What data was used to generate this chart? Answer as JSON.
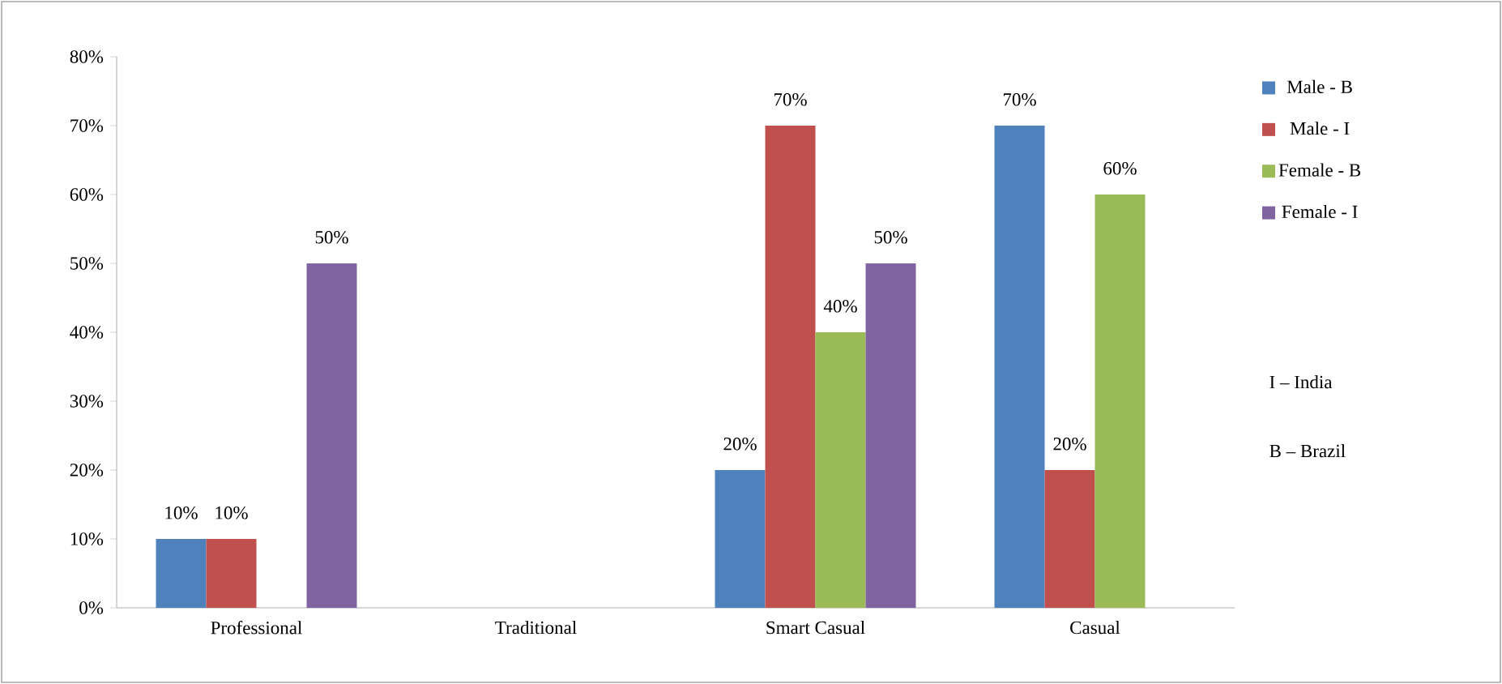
{
  "chart_data": {
    "type": "bar",
    "categories": [
      "Professional",
      "Traditional",
      "Smart Casual",
      "Casual"
    ],
    "series": [
      {
        "name": "Male - B",
        "color": "#4f81bd",
        "values": [
          10,
          null,
          20,
          70
        ],
        "value_labels": [
          "10%",
          null,
          "20%",
          "70%"
        ]
      },
      {
        "name": "Male - I",
        "color": "#c0504d",
        "values": [
          10,
          null,
          70,
          20
        ],
        "value_labels": [
          "10%",
          null,
          "70%",
          "20%"
        ]
      },
      {
        "name": "Female - B",
        "color": "#9bbb59",
        "values": [
          null,
          null,
          40,
          60
        ],
        "value_labels": [
          null,
          null,
          "40%",
          "60%"
        ]
      },
      {
        "name": "Female - I",
        "color": "#8064a2",
        "values": [
          50,
          null,
          50,
          null
        ],
        "value_labels": [
          "50%",
          null,
          "50%",
          null
        ]
      }
    ],
    "ylim": [
      0,
      80
    ],
    "yticks": [
      {
        "value": 0,
        "label": "0%"
      },
      {
        "value": 10,
        "label": "10%"
      },
      {
        "value": 20,
        "label": "20%"
      },
      {
        "value": 30,
        "label": "30%"
      },
      {
        "value": 40,
        "label": "40%"
      },
      {
        "value": 50,
        "label": "50%"
      },
      {
        "value": 60,
        "label": "60%"
      },
      {
        "value": 70,
        "label": "70%"
      },
      {
        "value": 80,
        "label": "80%"
      }
    ],
    "legend": "right",
    "annotations": [
      "I – India",
      "B – Brazil"
    ]
  }
}
